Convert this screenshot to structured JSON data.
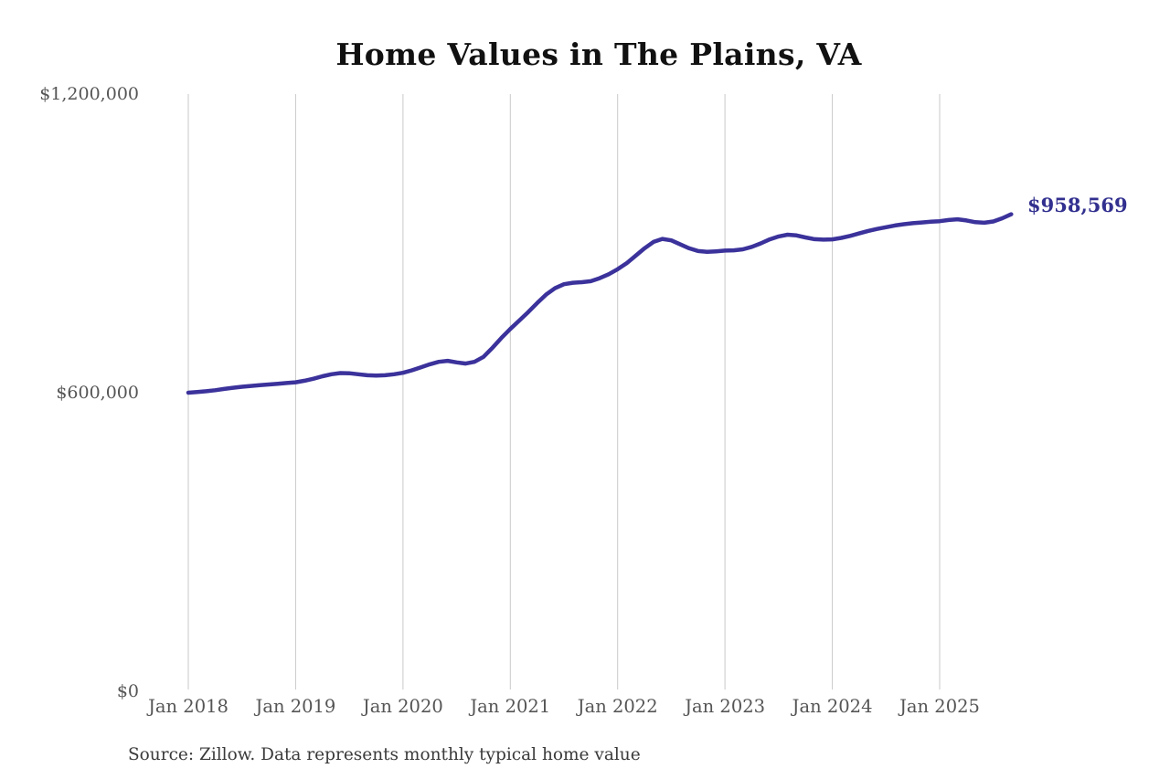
{
  "chart": {
    "title": "Home Values in The Plains, VA",
    "end_label": "$958,569",
    "source": "Source: Zillow. Data represents monthly typical home value"
  },
  "colors": {
    "background": "#ffffff",
    "line": "#3b329b",
    "end_label_text": "#32308f",
    "gridline": "#c9c9c9",
    "axis_text": "#555555",
    "title_text": "#111111",
    "source_text": "#3a3a3a"
  },
  "chart_data": {
    "type": "line",
    "title": "Home Values in The Plains, VA",
    "unit": "USD",
    "x_start": "2018-01",
    "x_end": "2025-09",
    "ylim": [
      0,
      1200000
    ],
    "grid": "vertical-only",
    "legend": "none",
    "y_ticks": [
      {
        "label": "$0",
        "value": 0
      },
      {
        "label": "$600,000",
        "value": 600000
      },
      {
        "label": "$1,200,000",
        "value": 1200000
      }
    ],
    "x_ticks": [
      {
        "label": "Jan 2018",
        "month_index": 0
      },
      {
        "label": "Jan 2019",
        "month_index": 12
      },
      {
        "label": "Jan 2020",
        "month_index": 24
      },
      {
        "label": "Jan 2021",
        "month_index": 36
      },
      {
        "label": "Jan 2022",
        "month_index": 48
      },
      {
        "label": "Jan 2023",
        "month_index": 60
      },
      {
        "label": "Jan 2024",
        "month_index": 72
      },
      {
        "label": "Jan 2025",
        "month_index": 84
      }
    ],
    "end_value": 958569,
    "series": [
      {
        "name": "Monthly typical home value",
        "monthly_values": [
          600000,
          601500,
          603000,
          605000,
          607500,
          610000,
          612000,
          613500,
          615000,
          616500,
          618000,
          619500,
          621000,
          624000,
          628000,
          633000,
          637000,
          639500,
          639000,
          637000,
          635000,
          634500,
          635000,
          637000,
          640000,
          645000,
          651000,
          657000,
          662000,
          664000,
          661000,
          658500,
          662000,
          672000,
          690000,
          710000,
          728000,
          745000,
          762000,
          780000,
          797000,
          810000,
          818000,
          821000,
          822000,
          824000,
          830000,
          838000,
          848000,
          860000,
          875000,
          890000,
          903000,
          909000,
          906000,
          898000,
          890000,
          884500,
          883000,
          884000,
          885500,
          886000,
          888000,
          893000,
          900000,
          908000,
          914000,
          917500,
          916000,
          912000,
          908500,
          907500,
          908000,
          911000,
          915000,
          920000,
          925000,
          929000,
          932500,
          936000,
          938500,
          940500,
          942000,
          943500,
          944500,
          947000,
          948500,
          946000,
          942500,
          941500,
          944000,
          950500,
          958569
        ]
      }
    ]
  }
}
